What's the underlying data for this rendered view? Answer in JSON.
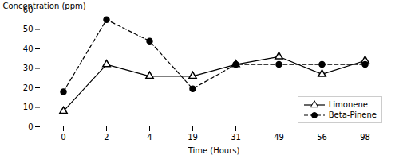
{
  "chart_data": {
    "type": "line",
    "xlabel": "Time (Hours)",
    "ylabel": "Concentration (ppm)",
    "categories": [
      "0",
      "2",
      "4",
      "19",
      "31",
      "49",
      "56",
      "98"
    ],
    "series": [
      {
        "name": "Limonene",
        "color": "black",
        "values": [
          8,
          32,
          26,
          26,
          32,
          36,
          27,
          34
        ],
        "marker": "triangle",
        "line_style": "solid"
      },
      {
        "name": "Beta-Pinene",
        "color": "black",
        "values": [
          18,
          55,
          44,
          19.5,
          32,
          32,
          32,
          32
        ],
        "marker": "circle",
        "line_style": "dashed"
      }
    ],
    "ylim": [
      0,
      60
    ],
    "yticks": [
      0,
      10,
      20,
      30,
      40,
      50,
      60
    ],
    "legend": "lower right",
    "grid": false
  }
}
